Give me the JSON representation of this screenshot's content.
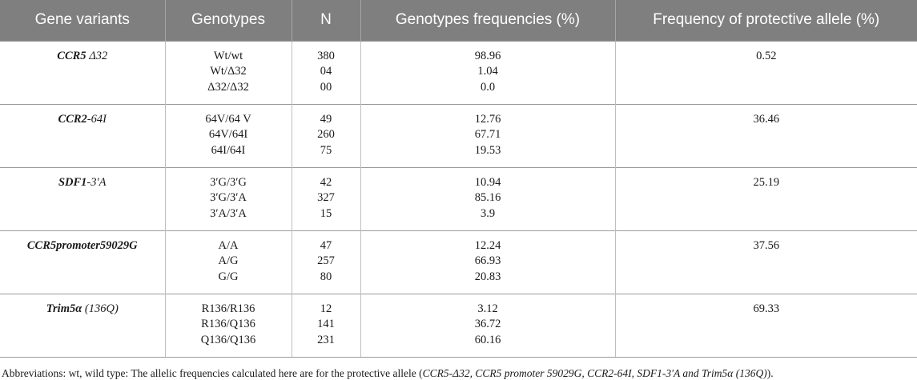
{
  "headers": [
    "Gene variants",
    "Genotypes",
    "N",
    "Genotypes frequencies (%)",
    "Frequency of protective allele (%)"
  ],
  "rows": [
    {
      "gene_bold": "CCR5",
      "gene_rest": " Δ32",
      "genotypes": [
        "Wt/wt",
        "Wt/Δ32",
        "Δ32/Δ32"
      ],
      "n": [
        "380",
        "04",
        "00"
      ],
      "freqs": [
        "98.96",
        "1.04",
        "0.0"
      ],
      "protective": "0.52"
    },
    {
      "gene_bold": "CCR2",
      "gene_rest": "-64I",
      "genotypes": [
        "64V/64 V",
        "64V/64I",
        "64I/64I"
      ],
      "n": [
        "49",
        "260",
        "75"
      ],
      "freqs": [
        "12.76",
        "67.71",
        "19.53"
      ],
      "protective": "36.46"
    },
    {
      "gene_bold": "SDF1",
      "gene_rest": "-3′A",
      "genotypes": [
        "3′G/3′G",
        "3′G/3′A",
        "3′A/3′A"
      ],
      "n": [
        "42",
        "327",
        "15"
      ],
      "freqs": [
        "10.94",
        "85.16",
        "3.9"
      ],
      "protective": "25.19"
    },
    {
      "gene_bold": "CCR5promoter59029G",
      "gene_rest": "",
      "genotypes": [
        "A/A",
        "A/G",
        "G/G"
      ],
      "n": [
        "47",
        "257",
        "80"
      ],
      "freqs": [
        "12.24",
        "66.93",
        "20.83"
      ],
      "protective": "37.56"
    },
    {
      "gene_bold": "Trim5α",
      "gene_rest": " (136Q)",
      "genotypes": [
        "R136/R136",
        "R136/Q136",
        "Q136/Q136"
      ],
      "n": [
        "12",
        "141",
        "231"
      ],
      "freqs": [
        "3.12",
        "36.72",
        "60.16"
      ],
      "protective": "69.33"
    }
  ],
  "footnote": {
    "prefix": "Abbreviations: wt, wild type: The allelic frequencies calculated here are for the protective allele (",
    "alleles": "CCR5-Δ32, CCR5 promoter 59029G, CCR2-64I, SDF1-3′A and Trim5α (136Q)",
    "suffix": ")."
  }
}
